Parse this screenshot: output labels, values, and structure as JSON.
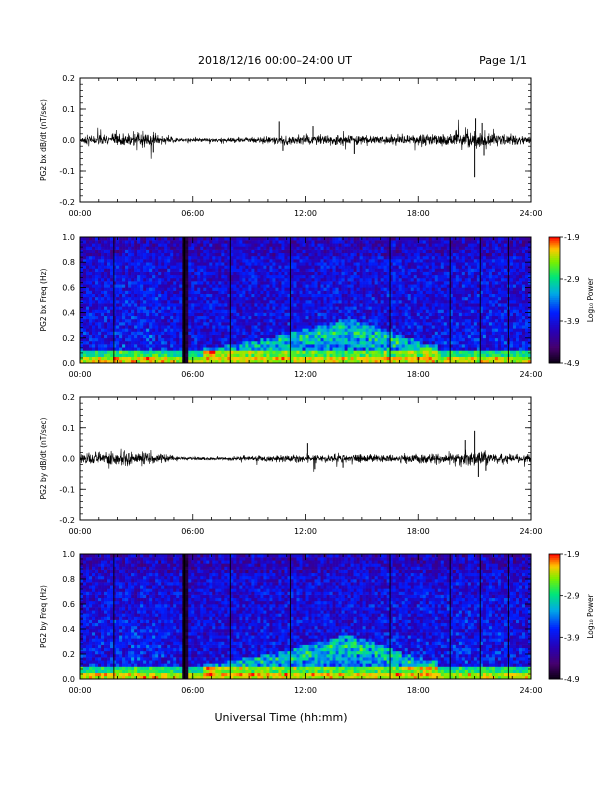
{
  "header": {
    "title": "2018/12/16   00:00–24:00 UT",
    "page": "Page 1/1"
  },
  "x_axis_title": "Universal Time (hh:mm)",
  "chart_data": [
    {
      "type": "line",
      "ylabel": "PG2 bx dB/dt (nT/sec)",
      "xlim": [
        0,
        24
      ],
      "ylim": [
        -0.2,
        0.2
      ],
      "x_tick_labels": [
        "00:00",
        "06:00",
        "12:00",
        "18:00",
        "24:00"
      ],
      "y_tick_labels": [
        "-0.2",
        "-0.1",
        "0.0",
        "0.1",
        "0.2"
      ],
      "y_ticks": [
        -0.2,
        -0.1,
        0.0,
        0.1,
        0.2
      ],
      "series": [
        {
          "color": "#000000",
          "noise_envelope": [
            [
              0,
              0.012
            ],
            [
              1.5,
              0.018
            ],
            [
              2.5,
              0.022
            ],
            [
              3.5,
              0.018
            ],
            [
              4.5,
              0.012
            ],
            [
              5.3,
              0.006
            ],
            [
              7,
              0.006
            ],
            [
              9,
              0.008
            ],
            [
              11,
              0.012
            ],
            [
              13,
              0.014
            ],
            [
              15,
              0.013
            ],
            [
              17,
              0.012
            ],
            [
              19,
              0.016
            ],
            [
              20.5,
              0.025
            ],
            [
              21.5,
              0.02
            ],
            [
              23,
              0.014
            ],
            [
              24,
              0.012
            ]
          ],
          "spikes": [
            [
              3.9,
              -0.04
            ],
            [
              10.6,
              0.06
            ],
            [
              10.8,
              -0.035
            ],
            [
              12.4,
              0.045
            ],
            [
              14.6,
              -0.045
            ],
            [
              21.0,
              -0.12
            ],
            [
              21.05,
              0.07
            ],
            [
              21.4,
              0.055
            ],
            [
              21.5,
              -0.05
            ]
          ]
        }
      ]
    },
    {
      "type": "heatmap",
      "ylabel": "PG2 bx Freq (Hz)",
      "xlim": [
        0,
        24
      ],
      "ylim": [
        0.0,
        1.0
      ],
      "x_tick_labels": [
        "00:00",
        "06:00",
        "12:00",
        "18:00",
        "24:00"
      ],
      "y_tick_labels": [
        "0.0",
        "0.2",
        "0.4",
        "0.6",
        "0.8",
        "1.0"
      ],
      "y_ticks": [
        0.0,
        0.2,
        0.4,
        0.6,
        0.8,
        1.0
      ],
      "colorbar": {
        "label": "Log₁₀ Power",
        "min": -4.9,
        "max": -1.9,
        "tick_labels": [
          "-1.9",
          "-2.9",
          "-3.9",
          "-4.9"
        ],
        "ticks": [
          -1.9,
          -2.9,
          -3.9,
          -4.9
        ]
      },
      "dark_gaps_ut": [
        5.5,
        5.6
      ],
      "vertical_lines_ut": [
        1.8,
        8.0,
        11.2,
        16.5,
        19.7,
        21.3,
        22.8
      ],
      "enhanced_band": [
        [
          7,
          0.12
        ],
        [
          10,
          0.2
        ],
        [
          13,
          0.3
        ],
        [
          14.3,
          0.36
        ],
        [
          15.5,
          0.3
        ],
        [
          17,
          0.22
        ],
        [
          18.5,
          0.15
        ]
      ]
    },
    {
      "type": "line",
      "ylabel": "PG2 by dB/dt (nT/sec)",
      "xlim": [
        0,
        24
      ],
      "ylim": [
        -0.2,
        0.2
      ],
      "x_tick_labels": [
        "00:00",
        "06:00",
        "12:00",
        "18:00",
        "24:00"
      ],
      "y_tick_labels": [
        "-0.2",
        "-0.1",
        "0.0",
        "0.1",
        "0.2"
      ],
      "y_ticks": [
        -0.2,
        -0.1,
        0.0,
        0.1,
        0.2
      ],
      "series": [
        {
          "color": "#000000",
          "noise_envelope": [
            [
              0,
              0.014
            ],
            [
              1.5,
              0.02
            ],
            [
              2.5,
              0.022
            ],
            [
              3.5,
              0.018
            ],
            [
              4.5,
              0.012
            ],
            [
              5.3,
              0.005
            ],
            [
              7,
              0.005
            ],
            [
              9,
              0.007
            ],
            [
              11,
              0.01
            ],
            [
              13,
              0.012
            ],
            [
              15,
              0.012
            ],
            [
              17,
              0.012
            ],
            [
              19,
              0.015
            ],
            [
              20.5,
              0.02
            ],
            [
              21.5,
              0.018
            ],
            [
              23,
              0.012
            ],
            [
              24,
              0.01
            ]
          ],
          "spikes": [
            [
              12.1,
              0.05
            ],
            [
              12.5,
              -0.035
            ],
            [
              14.0,
              -0.03
            ],
            [
              20.5,
              0.06
            ],
            [
              21.0,
              0.09
            ],
            [
              21.2,
              -0.06
            ],
            [
              21.6,
              -0.04
            ]
          ]
        }
      ]
    },
    {
      "type": "heatmap",
      "ylabel": "PG2 by Freq (Hz)",
      "xlim": [
        0,
        24
      ],
      "ylim": [
        0.0,
        1.0
      ],
      "x_tick_labels": [
        "00:00",
        "06:00",
        "12:00",
        "18:00",
        "24:00"
      ],
      "y_tick_labels": [
        "0.0",
        "0.2",
        "0.4",
        "0.6",
        "0.8",
        "1.0"
      ],
      "y_ticks": [
        0.0,
        0.2,
        0.4,
        0.6,
        0.8,
        1.0
      ],
      "colorbar": {
        "label": "Log₁₀ Power",
        "min": -4.9,
        "max": -1.9,
        "tick_labels": [
          "-1.9",
          "-2.9",
          "-3.9",
          "-4.9"
        ],
        "ticks": [
          -1.9,
          -2.9,
          -3.9,
          -4.9
        ]
      },
      "dark_gaps_ut": [
        5.5,
        5.6
      ],
      "vertical_lines_ut": [
        1.8,
        8.0,
        11.2,
        16.5,
        19.7,
        21.3,
        22.8
      ],
      "enhanced_band": [
        [
          7,
          0.12
        ],
        [
          10,
          0.2
        ],
        [
          13,
          0.3
        ],
        [
          14.3,
          0.36
        ],
        [
          15.5,
          0.3
        ],
        [
          17,
          0.22
        ],
        [
          18.5,
          0.15
        ]
      ]
    }
  ]
}
